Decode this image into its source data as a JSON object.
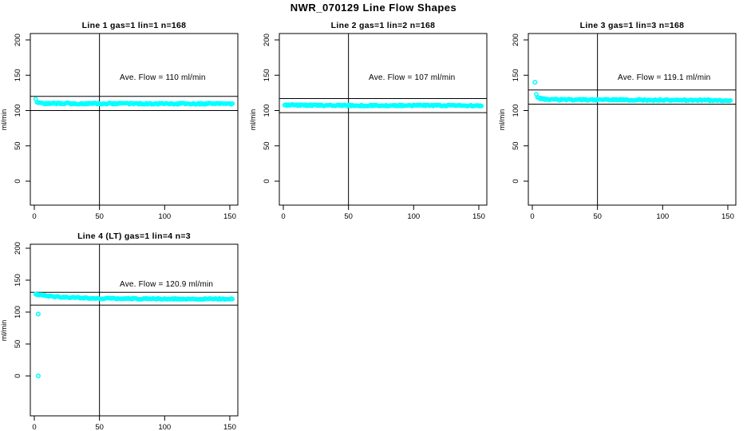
{
  "figure": {
    "title": "NWR_070129  Line Flow Shapes",
    "colors": {
      "points": "#00ffff",
      "axis": "#000000",
      "background": "#ffffff"
    }
  },
  "chart_data": [
    {
      "type": "scatter",
      "grid": {
        "row": 0,
        "col": 0
      },
      "title": "Line 1 gas=1 lin=1 n=168",
      "annotation": "Ave. Flow =  110  ml/min",
      "ave_flow_ml_min": 110,
      "ylabel": "ml/min",
      "xlabel": "",
      "x_ticks": [
        0,
        50,
        100,
        150
      ],
      "y_ticks": [
        0,
        50,
        100,
        150,
        200
      ],
      "xlim": [
        -3,
        157
      ],
      "ylim": [
        -34,
        209
      ],
      "grid_on": false,
      "legend": null,
      "vline_x": 50,
      "ref_lines": [
        120,
        100
      ],
      "n_shown": 152,
      "profile_keypoints": [
        [
          1,
          117
        ],
        [
          2,
          112
        ],
        [
          4,
          110.5
        ],
        [
          15,
          110
        ],
        [
          152,
          109.6
        ]
      ],
      "noise_amp": 1.1,
      "outlier_points": [],
      "seed": 1
    },
    {
      "type": "scatter",
      "grid": {
        "row": 0,
        "col": 1
      },
      "title": "Line 2 gas=1 lin=2 n=168",
      "annotation": "Ave. Flow =  107  ml/min",
      "ave_flow_ml_min": 107,
      "ylabel": "ml/min",
      "xlabel": "",
      "x_ticks": [
        0,
        50,
        100,
        150
      ],
      "y_ticks": [
        0,
        50,
        100,
        150,
        200
      ],
      "xlim": [
        -3,
        157
      ],
      "ylim": [
        -34,
        209
      ],
      "grid_on": false,
      "legend": null,
      "vline_x": 50,
      "ref_lines": [
        117,
        97
      ],
      "n_shown": 152,
      "profile_keypoints": [
        [
          1,
          108
        ],
        [
          30,
          107.3
        ],
        [
          152,
          107
        ]
      ],
      "noise_amp": 1.0,
      "outlier_points": [],
      "seed": 2
    },
    {
      "type": "scatter",
      "grid": {
        "row": 0,
        "col": 2
      },
      "title": "Line 3 gas=1 lin=3 n=168",
      "annotation": "Ave. Flow =  119.1  ml/min",
      "ave_flow_ml_min": 119.1,
      "ylabel": "ml/min",
      "xlabel": "",
      "x_ticks": [
        0,
        50,
        100,
        150
      ],
      "y_ticks": [
        0,
        50,
        100,
        150,
        200
      ],
      "xlim": [
        -3,
        157
      ],
      "ylim": [
        -34,
        209
      ],
      "grid_on": false,
      "legend": null,
      "vline_x": 50,
      "ref_lines": [
        129.1,
        109.1
      ],
      "n_shown": 152,
      "profile_keypoints": [
        [
          3,
          123
        ],
        [
          4,
          119.5
        ],
        [
          6,
          117
        ],
        [
          12,
          115.5
        ],
        [
          152,
          114.6
        ]
      ],
      "noise_amp": 1.0,
      "outlier_points": [
        [
          2,
          140
        ]
      ],
      "seed": 3
    },
    {
      "type": "scatter",
      "grid": {
        "row": 1,
        "col": 0
      },
      "title": "Line 4 (LT) gas=1 lin=4 n=3",
      "annotation": "Ave. Flow =  120.9  ml/min",
      "ave_flow_ml_min": 120.9,
      "ylabel": "ml/min",
      "xlabel": "",
      "x_ticks": [
        0,
        50,
        100,
        150
      ],
      "y_ticks": [
        0,
        50,
        100,
        150,
        200
      ],
      "xlim": [
        -3,
        157
      ],
      "ylim": [
        -63,
        229
      ],
      "grid_on": false,
      "legend": null,
      "vline_x": 50,
      "ref_lines": [
        130.9,
        110.9
      ],
      "n_shown": 152,
      "profile_keypoints": [
        [
          1,
          128
        ],
        [
          4,
          127
        ],
        [
          10,
          125
        ],
        [
          20,
          123.5
        ],
        [
          35,
          122.3
        ],
        [
          55,
          121.3
        ],
        [
          90,
          120.8
        ],
        [
          152,
          120.4
        ]
      ],
      "noise_amp": 0.9,
      "outlier_points": [
        [
          3,
          97
        ],
        [
          3,
          0
        ]
      ],
      "seed": 4
    }
  ]
}
